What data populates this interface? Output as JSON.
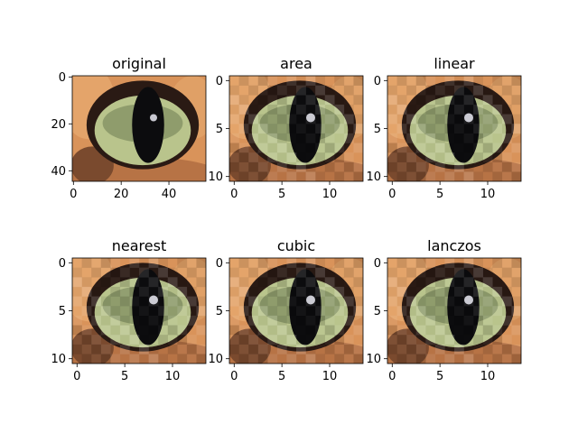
{
  "chart_data": [
    {
      "type": "image",
      "title": "original",
      "x_ticks": [
        "0",
        "20",
        "40"
      ],
      "y_ticks": [
        "0",
        "20",
        "40"
      ],
      "xlim": [
        -0.5,
        55.5
      ],
      "ylim": [
        44.5,
        -0.5
      ],
      "tick_values_x": [
        0,
        20,
        40
      ],
      "tick_values_y": [
        0,
        20,
        40
      ]
    },
    {
      "type": "image",
      "title": "area",
      "x_ticks": [
        "0",
        "5",
        "10"
      ],
      "y_ticks": [
        "0",
        "5",
        "10"
      ],
      "xlim": [
        -0.5,
        13.5
      ],
      "ylim": [
        10.5,
        -0.5
      ],
      "tick_values_x": [
        0,
        5,
        10
      ],
      "tick_values_y": [
        0,
        5,
        10
      ]
    },
    {
      "type": "image",
      "title": "linear",
      "x_ticks": [
        "0",
        "5",
        "10"
      ],
      "y_ticks": [
        "0",
        "5",
        "10"
      ],
      "xlim": [
        -0.5,
        13.5
      ],
      "ylim": [
        10.5,
        -0.5
      ],
      "tick_values_x": [
        0,
        5,
        10
      ],
      "tick_values_y": [
        0,
        5,
        10
      ]
    },
    {
      "type": "image",
      "title": "nearest",
      "x_ticks": [
        "0",
        "5",
        "10"
      ],
      "y_ticks": [
        "0",
        "5",
        "10"
      ],
      "xlim": [
        -0.5,
        13.5
      ],
      "ylim": [
        10.5,
        -0.5
      ],
      "tick_values_x": [
        0,
        5,
        10
      ],
      "tick_values_y": [
        0,
        5,
        10
      ]
    },
    {
      "type": "image",
      "title": "cubic",
      "x_ticks": [
        "0",
        "5",
        "10"
      ],
      "y_ticks": [
        "0",
        "5",
        "10"
      ],
      "xlim": [
        -0.5,
        13.5
      ],
      "ylim": [
        10.5,
        -0.5
      ],
      "tick_values_x": [
        0,
        5,
        10
      ],
      "tick_values_y": [
        0,
        5,
        10
      ]
    },
    {
      "type": "image",
      "title": "lanczos",
      "x_ticks": [
        "0",
        "5",
        "10"
      ],
      "y_ticks": [
        "0",
        "5",
        "10"
      ],
      "xlim": [
        -0.5,
        13.5
      ],
      "ylim": [
        10.5,
        -0.5
      ],
      "tick_values_x": [
        0,
        5,
        10
      ],
      "tick_values_y": [
        0,
        5,
        10
      ]
    }
  ]
}
